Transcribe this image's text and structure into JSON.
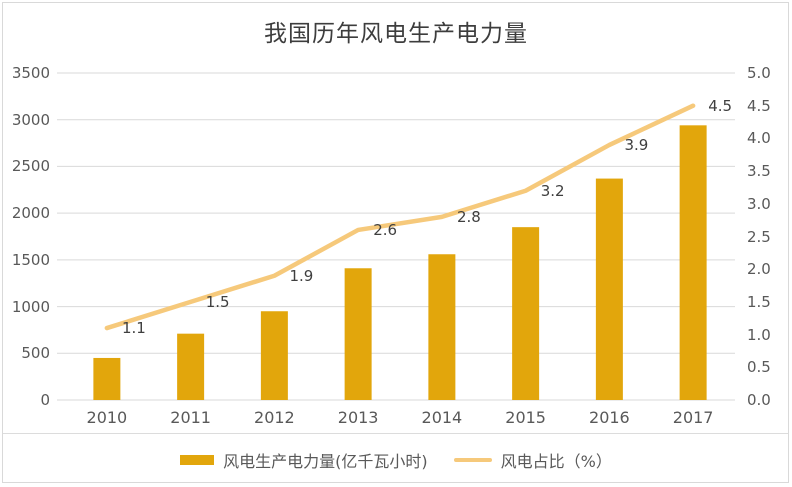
{
  "title": "我国历年风电生产电力量",
  "colors": {
    "bar": "#e2a60c",
    "line": "#f6c97b",
    "grid": "#d9d9d9",
    "axis_text": "#595959",
    "data_label_text": "#3f3f3f",
    "title_text": "#3d3d3d",
    "frame_border": "#d9d9d9"
  },
  "legend": {
    "production_label": "风电生产电力量(亿千瓦小时)",
    "share_label": "风电占比（%）"
  },
  "chart_data": {
    "type": "bar",
    "title": "我国历年风电生产电力量",
    "categories": [
      "2010",
      "2011",
      "2012",
      "2013",
      "2014",
      "2015",
      "2016",
      "2017"
    ],
    "series": [
      {
        "name": "风电生产电力量(亿千瓦小时)",
        "type": "bar",
        "axis": "left",
        "values": [
          450,
          710,
          950,
          1410,
          1560,
          1850,
          2370,
          2940
        ]
      },
      {
        "name": "风电占比（%）",
        "type": "line",
        "axis": "right",
        "values": [
          1.1,
          1.5,
          1.9,
          2.6,
          2.8,
          3.2,
          3.9,
          4.5
        ],
        "data_labels": [
          "1.1",
          "1.5",
          "1.9",
          "2.6",
          "2.8",
          "3.2",
          "3.9",
          "4.5"
        ]
      }
    ],
    "left_axis": {
      "min": 0,
      "max": 3500,
      "step": 500,
      "ticks": [
        "0",
        "500",
        "1000",
        "1500",
        "2000",
        "2500",
        "3000",
        "3500"
      ]
    },
    "right_axis": {
      "min": 0.0,
      "max": 5.0,
      "step": 0.5,
      "ticks": [
        "0.0",
        "0.5",
        "1.0",
        "1.5",
        "2.0",
        "2.5",
        "3.0",
        "3.5",
        "4.0",
        "4.5",
        "5.0"
      ]
    },
    "grid": true,
    "legend_position": "bottom",
    "xlabel": "",
    "ylabel": ""
  }
}
